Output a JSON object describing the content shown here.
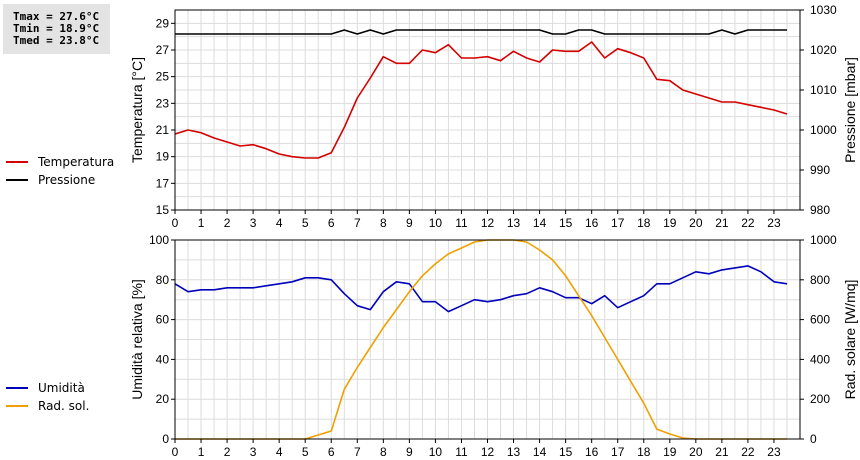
{
  "stats": {
    "tmax": "Tmax = 27.6°C",
    "tmin": "Tmin = 18.9°C",
    "tmed": "Tmed = 23.8°C"
  },
  "legend_top": [
    {
      "label": "Temperatura",
      "color": "#d40000"
    },
    {
      "label": "Pressione",
      "color": "#000000"
    }
  ],
  "legend_bottom": [
    {
      "label": "Umidità",
      "color": "#0000bb"
    },
    {
      "label": "Rad. sol.",
      "color": "#f0a000"
    }
  ],
  "chart_data": [
    {
      "type": "line",
      "x_ticks": [
        "0",
        "1",
        "2",
        "3",
        "4",
        "5",
        "6",
        "7",
        "8",
        "9",
        "10",
        "11",
        "12",
        "13",
        "14",
        "15",
        "16",
        "17",
        "18",
        "19",
        "20",
        "21",
        "22",
        "23"
      ],
      "xlim": [
        0,
        24
      ],
      "ylabel": "Temperatura [°C]",
      "ylim": [
        15,
        30
      ],
      "y_ticks": [
        "15",
        "17",
        "19",
        "21",
        "23",
        "25",
        "27",
        "29"
      ],
      "y2label": "Pressione [mbar]",
      "y2lim": [
        980,
        1030
      ],
      "y2_ticks": [
        "980",
        "990",
        "1000",
        "1010",
        "1020",
        "1030"
      ],
      "grid": true,
      "series": [
        {
          "name": "Temperatura",
          "axis": "left",
          "color": "#d40000",
          "x": [
            0,
            0.5,
            1,
            1.5,
            2,
            2.5,
            3,
            3.5,
            4,
            4.5,
            5,
            5.5,
            6,
            6.5,
            7,
            7.5,
            8,
            8.5,
            9,
            9.5,
            10,
            10.5,
            11,
            11.5,
            12,
            12.5,
            13,
            13.5,
            14,
            14.5,
            15,
            15.5,
            16,
            16.5,
            17,
            17.5,
            18,
            18.5,
            19,
            19.5,
            20,
            20.5,
            21,
            21.5,
            22,
            22.5,
            23,
            23.5
          ],
          "values": [
            20.7,
            21.0,
            20.8,
            20.4,
            20.1,
            19.8,
            19.9,
            19.6,
            19.2,
            19.0,
            18.9,
            18.9,
            19.3,
            21.2,
            23.4,
            24.9,
            26.5,
            26.0,
            26.0,
            27.0,
            26.8,
            27.4,
            26.4,
            26.4,
            26.5,
            26.2,
            26.9,
            26.4,
            26.1,
            27.0,
            26.9,
            26.9,
            27.6,
            26.4,
            27.1,
            26.8,
            26.4,
            24.8,
            24.7,
            24.0,
            23.7,
            23.4,
            23.1,
            23.1,
            22.9,
            22.7,
            22.5,
            22.2
          ]
        },
        {
          "name": "Pressione",
          "axis": "right",
          "color": "#000000",
          "x": [
            0,
            0.5,
            1,
            1.5,
            2,
            2.5,
            3,
            3.5,
            4,
            4.5,
            5,
            5.5,
            6,
            6.5,
            7,
            7.5,
            8,
            8.5,
            9,
            9.5,
            10,
            10.5,
            11,
            11.5,
            12,
            12.5,
            13,
            13.5,
            14,
            14.5,
            15,
            15.5,
            16,
            16.5,
            17,
            17.5,
            18,
            18.5,
            19,
            19.5,
            20,
            20.5,
            21,
            21.5,
            22,
            22.5,
            23,
            23.5
          ],
          "values": [
            1024,
            1024,
            1024,
            1024,
            1024,
            1024,
            1024,
            1024,
            1024,
            1024,
            1024,
            1024,
            1024,
            1025,
            1024,
            1025,
            1024,
            1025,
            1025,
            1025,
            1025,
            1025,
            1025,
            1025,
            1025,
            1025,
            1025,
            1025,
            1025,
            1024,
            1024,
            1025,
            1025,
            1024,
            1024,
            1024,
            1024,
            1024,
            1024,
            1024,
            1024,
            1024,
            1025,
            1024,
            1025,
            1025,
            1025,
            1025
          ]
        }
      ]
    },
    {
      "type": "line",
      "x_ticks": [
        "0",
        "1",
        "2",
        "3",
        "4",
        "5",
        "6",
        "7",
        "8",
        "9",
        "10",
        "11",
        "12",
        "13",
        "14",
        "15",
        "16",
        "17",
        "18",
        "19",
        "20",
        "21",
        "22",
        "23"
      ],
      "xlim": [
        0,
        24
      ],
      "ylabel": "Umidità relativa [%]",
      "ylim": [
        0,
        100
      ],
      "y_ticks": [
        "0",
        "20",
        "40",
        "60",
        "80",
        "100"
      ],
      "y2label": "Rad. solare [W/mq]",
      "y2lim": [
        0,
        1000
      ],
      "y2_ticks": [
        "0",
        "200",
        "400",
        "600",
        "800",
        "1000"
      ],
      "grid": true,
      "series": [
        {
          "name": "Umidità",
          "axis": "left",
          "color": "#0000bb",
          "x": [
            0,
            0.5,
            1,
            1.5,
            2,
            2.5,
            3,
            3.5,
            4,
            4.5,
            5,
            5.5,
            6,
            6.5,
            7,
            7.5,
            8,
            8.5,
            9,
            9.5,
            10,
            10.5,
            11,
            11.5,
            12,
            12.5,
            13,
            13.5,
            14,
            14.5,
            15,
            15.5,
            16,
            16.5,
            17,
            17.5,
            18,
            18.5,
            19,
            19.5,
            20,
            20.5,
            21,
            21.5,
            22,
            22.5,
            23,
            23.5
          ],
          "values": [
            78,
            74,
            75,
            75,
            76,
            76,
            76,
            77,
            78,
            79,
            81,
            81,
            80,
            73,
            67,
            65,
            74,
            79,
            78,
            69,
            69,
            64,
            67,
            70,
            69,
            70,
            72,
            73,
            76,
            74,
            71,
            71,
            68,
            72,
            66,
            69,
            72,
            78,
            78,
            81,
            84,
            83,
            85,
            86,
            87,
            84,
            79,
            78
          ]
        },
        {
          "name": "Rad. sol.",
          "axis": "right",
          "color": "#f0a000",
          "x": [
            0,
            0.5,
            1,
            1.5,
            2,
            2.5,
            3,
            3.5,
            4,
            4.5,
            5,
            5.5,
            6,
            6.5,
            7,
            7.5,
            8,
            8.5,
            9,
            9.5,
            10,
            10.5,
            11,
            11.5,
            12,
            12.5,
            13,
            13.5,
            14,
            14.5,
            15,
            15.5,
            16,
            16.5,
            17,
            17.5,
            18,
            18.5,
            19,
            19.5,
            20,
            20.5,
            21,
            21.5,
            22,
            22.5,
            23,
            23.5
          ],
          "values": [
            0,
            0,
            0,
            0,
            0,
            0,
            0,
            0,
            0,
            0,
            0,
            20,
            40,
            250,
            360,
            460,
            560,
            650,
            740,
            820,
            880,
            930,
            960,
            990,
            1000,
            1000,
            1000,
            990,
            950,
            900,
            820,
            720,
            620,
            510,
            400,
            290,
            180,
            50,
            25,
            5,
            0,
            0,
            0,
            0,
            0,
            0,
            0,
            0
          ]
        }
      ]
    }
  ]
}
